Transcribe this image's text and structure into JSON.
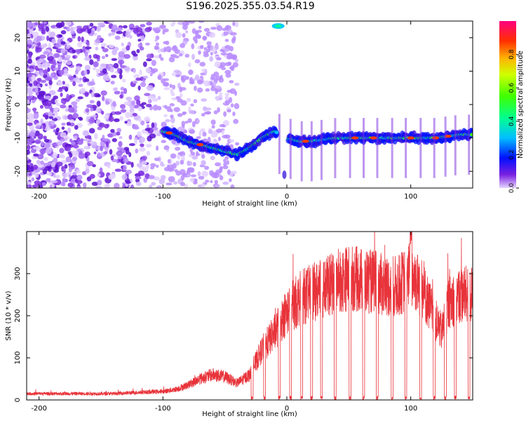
{
  "title": "S196.2025.355.03.54.R19",
  "colors": {
    "snr_line": "#e8333a",
    "axis": "#000000",
    "background": "#ffffff"
  },
  "chart_data": [
    {
      "type": "heatmap",
      "name": "spectrogram",
      "xlabel": "Height of straight line (km)",
      "ylabel": "Frequency (Hz)",
      "xlim": [
        -210,
        150
      ],
      "ylim": [
        -25,
        25
      ],
      "xticks": [
        "-200",
        "-100",
        "0",
        "100"
      ],
      "yticks": [
        "20",
        "10",
        "0",
        "-10",
        "-20"
      ],
      "colorbar": {
        "label": "Normalized spectral amplitude",
        "range": [
          0,
          1
        ],
        "ticks": [
          "0.0",
          "0.2",
          "0.4",
          "0.6",
          "0.8"
        ]
      },
      "signal_ridge": {
        "x": [
          -100,
          -90,
          -80,
          -70,
          -60,
          -50,
          -40,
          -30,
          -20,
          -10,
          0,
          10,
          20,
          40,
          60,
          80,
          100,
          120,
          140,
          150
        ],
        "y": [
          -8,
          -9,
          -11,
          -12,
          -13,
          -14,
          -15,
          -13,
          -10,
          -8,
          -10,
          -11,
          -11,
          -10,
          -10,
          -10,
          -10,
          -10,
          -9,
          -9
        ]
      },
      "noise_region": {
        "x": [
          -210,
          -40
        ],
        "y": [
          -25,
          25
        ]
      }
    },
    {
      "type": "line",
      "name": "snr",
      "xlabel": "Height of straight line (km)",
      "ylabel": "SNR (10 * v/v)",
      "xlim": [
        -210,
        150
      ],
      "ylim": [
        0,
        400
      ],
      "xticks": [
        "-200",
        "-100",
        "0",
        "100"
      ],
      "yticks": [
        "0",
        "100",
        "200",
        "300"
      ],
      "series": [
        {
          "x": [
            -210,
            -200,
            -180,
            -160,
            -140,
            -120,
            -100,
            -90,
            -80,
            -70,
            -60,
            -50,
            -40,
            -30,
            -20,
            -10,
            0,
            10,
            20,
            30,
            40,
            50,
            60,
            70,
            80,
            90,
            100,
            110,
            120,
            125,
            130,
            140,
            150
          ],
          "y": [
            15,
            15,
            15,
            15,
            15,
            18,
            20,
            25,
            35,
            50,
            60,
            55,
            40,
            60,
            120,
            160,
            210,
            240,
            255,
            265,
            280,
            290,
            285,
            280,
            270,
            270,
            300,
            260,
            190,
            160,
            230,
            250,
            250
          ]
        }
      ],
      "dropouts_x": [
        -28,
        -18,
        -6,
        3,
        12,
        20,
        28,
        39,
        51,
        62,
        73,
        85,
        96,
        108,
        119,
        128,
        136,
        147
      ]
    }
  ]
}
